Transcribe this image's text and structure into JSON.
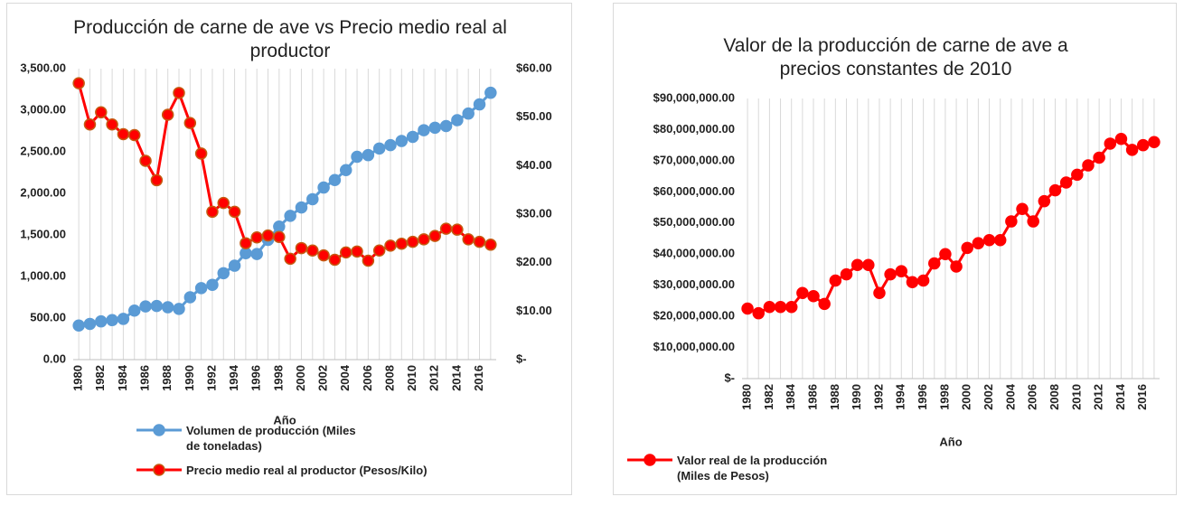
{
  "chart_data": [
    {
      "type": "line",
      "title": "Producción de carne de ave vs Precio medio real al productor",
      "x_label": "Año",
      "categories": [
        "1980",
        null,
        "1982",
        null,
        "1984",
        null,
        "1986",
        null,
        "1988",
        null,
        "1990",
        null,
        "1992",
        null,
        "1994",
        null,
        "1996",
        null,
        "1998",
        null,
        "2000",
        null,
        "2002",
        null,
        "2004",
        null,
        "2006",
        null,
        "2008",
        null,
        "2010",
        null,
        "2012",
        null,
        "2014",
        null,
        "2016",
        null
      ],
      "series": [
        {
          "name": "Volumen de producción (Miles de toneladas)",
          "color": "#5b9bd5",
          "marker_edge": "#5b9bd5",
          "values": [
            410,
            430,
            460,
            475,
            490,
            590,
            640,
            645,
            630,
            610,
            750,
            860,
            900,
            1040,
            1130,
            1280,
            1270,
            1440,
            1600,
            1730,
            1830,
            1930,
            2070,
            2160,
            2280,
            2440,
            2460,
            2540,
            2580,
            2630,
            2680,
            2760,
            2790,
            2810,
            2880,
            2960,
            3070,
            3210
          ]
        },
        {
          "name": "Precio medio real al productor (Pesos/Kilo)",
          "color": "#ff0000",
          "marker_edge": "#c55a11",
          "axis": "y2",
          "values": [
            57,
            48.5,
            51,
            48.5,
            46.5,
            46.3,
            41,
            37,
            50.5,
            55,
            48.8,
            42.5,
            30.5,
            32.3,
            30.5,
            24,
            25.2,
            25.6,
            25.3,
            20.8,
            23,
            22.5,
            21.5,
            20.6,
            22.1,
            22.3,
            20.4,
            22.5,
            23.5,
            23.9,
            24.3,
            24.8,
            25.5,
            27,
            26.8,
            24.8,
            24.3,
            23.7
          ]
        }
      ],
      "ylim": [
        0,
        3500
      ],
      "yticks": [
        {
          "value": 0,
          "label": "0.00"
        },
        {
          "value": 500,
          "label": "500.00"
        },
        {
          "value": 1000,
          "label": "1,000.00"
        },
        {
          "value": 1500,
          "label": "1,500.00"
        },
        {
          "value": 2000,
          "label": "2,000.00"
        },
        {
          "value": 2500,
          "label": "2,500.00"
        },
        {
          "value": 3000,
          "label": "3,000.00"
        },
        {
          "value": 3500,
          "label": "3,500.00"
        }
      ],
      "y2lim": [
        0,
        60
      ],
      "y2ticks": [
        {
          "value": 0,
          "label": "$-"
        },
        {
          "value": 10,
          "label": "$10.00"
        },
        {
          "value": 20,
          "label": "$20.00"
        },
        {
          "value": 30,
          "label": "$30.00"
        },
        {
          "value": 40,
          "label": "$40.00"
        },
        {
          "value": 50,
          "label": "$50.00"
        },
        {
          "value": 60,
          "label": "$60.00"
        }
      ],
      "grid": "vertical",
      "legend": "bottom"
    },
    {
      "type": "line",
      "title": "Valor de la producción de carne de ave a precios constantes de 2010",
      "x_label": "Año",
      "categories": [
        "1980",
        null,
        "1982",
        null,
        "1984",
        null,
        "1986",
        null,
        "1988",
        null,
        "1990",
        null,
        "1992",
        null,
        "1994",
        null,
        "1996",
        null,
        "1998",
        null,
        "2000",
        null,
        "2002",
        null,
        "2004",
        null,
        "2006",
        null,
        "2008",
        null,
        "2010",
        null,
        "2012",
        null,
        "2014",
        null,
        "2016",
        null
      ],
      "series": [
        {
          "name": "Valor real de la producción (Miles de Pesos)",
          "color": "#ff0000",
          "marker_edge": "#ff0000",
          "values": [
            22500000,
            21000000,
            23000000,
            23000000,
            23000000,
            27500000,
            26500000,
            24000000,
            31500000,
            33500000,
            36500000,
            36500000,
            27500000,
            33500000,
            34500000,
            31000000,
            31500000,
            37000000,
            40000000,
            36000000,
            42000000,
            43500000,
            44500000,
            44500000,
            50500000,
            54500000,
            50500000,
            57000000,
            60500000,
            63000000,
            65500000,
            68500000,
            71000000,
            75500000,
            77000000,
            73500000,
            75000000,
            76000000
          ]
        }
      ],
      "ylim": [
        0,
        90000000
      ],
      "yticks": [
        {
          "value": 0,
          "label": "$-"
        },
        {
          "value": 10000000,
          "label": "$10,000,000.00"
        },
        {
          "value": 20000000,
          "label": "$20,000,000.00"
        },
        {
          "value": 30000000,
          "label": "$30,000,000.00"
        },
        {
          "value": 40000000,
          "label": "$40,000,000.00"
        },
        {
          "value": 50000000,
          "label": "$50,000,000.00"
        },
        {
          "value": 60000000,
          "label": "$60,000,000.00"
        },
        {
          "value": 70000000,
          "label": "$70,000,000.00"
        },
        {
          "value": 80000000,
          "label": "$80,000,000.00"
        },
        {
          "value": 90000000,
          "label": "$90,000,000.00"
        }
      ],
      "grid": "vertical",
      "legend": "bottom"
    }
  ]
}
